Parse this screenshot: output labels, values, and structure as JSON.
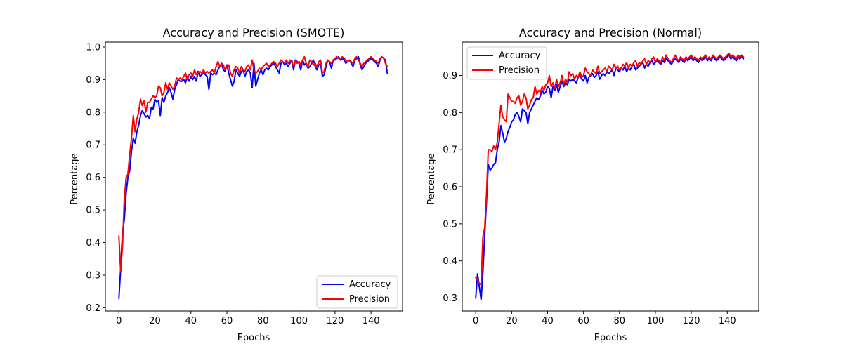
{
  "chart_data": [
    {
      "type": "line",
      "title": "Accuracy and Precision (SMOTE)",
      "xlabel": "Epochs",
      "ylabel": "Percentage",
      "xlim": [
        -7.5,
        157.5
      ],
      "ylim": [
        0.19,
        1.015
      ],
      "xticks": [
        0,
        20,
        40,
        60,
        80,
        100,
        120,
        140
      ],
      "yticks": [
        0.2,
        0.3,
        0.4,
        0.5,
        0.6,
        0.7,
        0.8,
        0.9,
        1.0
      ],
      "ytick_labels": [
        "0.2",
        "0.3",
        "0.4",
        "0.5",
        "0.6",
        "0.7",
        "0.8",
        "0.9",
        "1.0"
      ],
      "legend_position": "lower right",
      "grid": false,
      "series": [
        {
          "name": "Accuracy",
          "color": "#0000ff",
          "values": [
            0.228,
            0.32,
            0.43,
            0.47,
            0.55,
            0.6,
            0.62,
            0.68,
            0.72,
            0.705,
            0.74,
            0.76,
            0.79,
            0.805,
            0.795,
            0.785,
            0.79,
            0.78,
            0.815,
            0.81,
            0.84,
            0.83,
            0.835,
            0.79,
            0.845,
            0.83,
            0.85,
            0.86,
            0.875,
            0.86,
            0.84,
            0.87,
            0.885,
            0.9,
            0.895,
            0.895,
            0.9,
            0.89,
            0.91,
            0.895,
            0.91,
            0.9,
            0.91,
            0.895,
            0.925,
            0.91,
            0.915,
            0.92,
            0.915,
            0.91,
            0.87,
            0.92,
            0.915,
            0.92,
            0.915,
            0.93,
            0.94,
            0.95,
            0.93,
            0.925,
            0.945,
            0.92,
            0.9,
            0.88,
            0.895,
            0.93,
            0.92,
            0.91,
            0.925,
            0.93,
            0.91,
            0.925,
            0.93,
            0.92,
            0.875,
            0.95,
            0.88,
            0.9,
            0.92,
            0.93,
            0.915,
            0.93,
            0.935,
            0.93,
            0.94,
            0.945,
            0.95,
            0.94,
            0.93,
            0.92,
            0.95,
            0.955,
            0.945,
            0.95,
            0.94,
            0.95,
            0.96,
            0.93,
            0.96,
            0.955,
            0.95,
            0.93,
            0.96,
            0.945,
            0.95,
            0.935,
            0.94,
            0.95,
            0.96,
            0.94,
            0.93,
            0.945,
            0.95,
            0.91,
            0.915,
            0.94,
            0.96,
            0.955,
            0.935,
            0.96,
            0.96,
            0.965,
            0.97,
            0.96,
            0.965,
            0.96,
            0.95,
            0.955,
            0.96,
            0.95,
            0.94,
            0.96,
            0.965,
            0.97,
            0.945,
            0.93,
            0.94,
            0.95,
            0.955,
            0.96,
            0.965,
            0.96,
            0.955,
            0.95,
            0.94,
            0.96,
            0.97,
            0.965,
            0.96,
            0.92
          ]
        },
        {
          "name": "Precision",
          "color": "#ff0000",
          "values": [
            0.42,
            0.31,
            0.39,
            0.53,
            0.6,
            0.61,
            0.67,
            0.72,
            0.79,
            0.74,
            0.78,
            0.8,
            0.84,
            0.82,
            0.835,
            0.8,
            0.83,
            0.83,
            0.84,
            0.85,
            0.845,
            0.85,
            0.88,
            0.875,
            0.85,
            0.86,
            0.89,
            0.87,
            0.89,
            0.88,
            0.87,
            0.88,
            0.905,
            0.9,
            0.905,
            0.9,
            0.91,
            0.92,
            0.9,
            0.915,
            0.92,
            0.91,
            0.93,
            0.915,
            0.92,
            0.925,
            0.92,
            0.93,
            0.92,
            0.925,
            0.92,
            0.925,
            0.93,
            0.92,
            0.94,
            0.955,
            0.94,
            0.95,
            0.945,
            0.93,
            0.94,
            0.945,
            0.92,
            0.91,
            0.93,
            0.94,
            0.935,
            0.92,
            0.94,
            0.93,
            0.925,
            0.94,
            0.945,
            0.93,
            0.96,
            0.93,
            0.92,
            0.925,
            0.935,
            0.93,
            0.94,
            0.945,
            0.95,
            0.94,
            0.945,
            0.95,
            0.955,
            0.95,
            0.94,
            0.95,
            0.96,
            0.955,
            0.95,
            0.96,
            0.95,
            0.96,
            0.955,
            0.94,
            0.96,
            0.95,
            0.955,
            0.945,
            0.96,
            0.97,
            0.95,
            0.94,
            0.96,
            0.955,
            0.945,
            0.95,
            0.94,
            0.955,
            0.96,
            0.92,
            0.925,
            0.95,
            0.96,
            0.955,
            0.95,
            0.96,
            0.965,
            0.97,
            0.965,
            0.96,
            0.97,
            0.965,
            0.96,
            0.955,
            0.96,
            0.955,
            0.95,
            0.965,
            0.97,
            0.96,
            0.95,
            0.94,
            0.95,
            0.955,
            0.96,
            0.965,
            0.97,
            0.965,
            0.96,
            0.955,
            0.95,
            0.965,
            0.97,
            0.965,
            0.95,
            0.94
          ]
        }
      ]
    },
    {
      "type": "line",
      "title": "Accuracy and Precision (Normal)",
      "xlabel": "Epochs",
      "ylabel": "Percentage",
      "xlim": [
        -7.5,
        157.5
      ],
      "ylim": [
        0.265,
        0.99
      ],
      "xticks": [
        0,
        20,
        40,
        60,
        80,
        100,
        120,
        140
      ],
      "yticks": [
        0.3,
        0.4,
        0.5,
        0.6,
        0.7,
        0.8,
        0.9
      ],
      "ytick_labels": [
        "0.3",
        "0.4",
        "0.5",
        "0.6",
        "0.7",
        "0.8",
        "0.9"
      ],
      "legend_position": "upper left",
      "grid": false,
      "series": [
        {
          "name": "Accuracy",
          "color": "#0000ff",
          "values": [
            0.3,
            0.365,
            0.33,
            0.295,
            0.37,
            0.47,
            0.56,
            0.66,
            0.645,
            0.65,
            0.66,
            0.665,
            0.7,
            0.72,
            0.765,
            0.745,
            0.72,
            0.73,
            0.75,
            0.76,
            0.775,
            0.78,
            0.795,
            0.8,
            0.79,
            0.775,
            0.81,
            0.805,
            0.8,
            0.77,
            0.8,
            0.81,
            0.82,
            0.83,
            0.84,
            0.835,
            0.845,
            0.86,
            0.85,
            0.855,
            0.87,
            0.865,
            0.84,
            0.87,
            0.86,
            0.875,
            0.855,
            0.87,
            0.885,
            0.87,
            0.88,
            0.875,
            0.89,
            0.885,
            0.89,
            0.885,
            0.88,
            0.895,
            0.9,
            0.89,
            0.885,
            0.9,
            0.88,
            0.895,
            0.9,
            0.905,
            0.895,
            0.9,
            0.91,
            0.89,
            0.9,
            0.905,
            0.9,
            0.91,
            0.905,
            0.91,
            0.915,
            0.9,
            0.92,
            0.915,
            0.91,
            0.92,
            0.915,
            0.925,
            0.91,
            0.92,
            0.915,
            0.925,
            0.93,
            0.915,
            0.92,
            0.925,
            0.93,
            0.935,
            0.92,
            0.93,
            0.925,
            0.935,
            0.94,
            0.93,
            0.935,
            0.94,
            0.935,
            0.93,
            0.94,
            0.935,
            0.945,
            0.94,
            0.935,
            0.93,
            0.94,
            0.945,
            0.94,
            0.935,
            0.945,
            0.94,
            0.935,
            0.945,
            0.94,
            0.945,
            0.95,
            0.94,
            0.945,
            0.94,
            0.935,
            0.945,
            0.94,
            0.945,
            0.95,
            0.94,
            0.945,
            0.94,
            0.95,
            0.945,
            0.94,
            0.945,
            0.95,
            0.945,
            0.94,
            0.945,
            0.95,
            0.955,
            0.945,
            0.95,
            0.945,
            0.94,
            0.95,
            0.945,
            0.95,
            0.945
          ]
        },
        {
          "name": "Precision",
          "color": "#ff0000",
          "values": [
            0.355,
            0.35,
            0.34,
            0.335,
            0.465,
            0.49,
            0.58,
            0.7,
            0.7,
            0.695,
            0.71,
            0.7,
            0.72,
            0.77,
            0.82,
            0.79,
            0.78,
            0.775,
            0.85,
            0.84,
            0.83,
            0.83,
            0.825,
            0.84,
            0.845,
            0.82,
            0.83,
            0.85,
            0.84,
            0.81,
            0.82,
            0.835,
            0.84,
            0.87,
            0.85,
            0.86,
            0.855,
            0.87,
            0.86,
            0.875,
            0.88,
            0.9,
            0.87,
            0.88,
            0.865,
            0.89,
            0.87,
            0.88,
            0.9,
            0.875,
            0.89,
            0.88,
            0.91,
            0.9,
            0.905,
            0.89,
            0.9,
            0.895,
            0.91,
            0.895,
            0.9,
            0.92,
            0.91,
            0.905,
            0.9,
            0.915,
            0.91,
            0.905,
            0.925,
            0.905,
            0.91,
            0.915,
            0.92,
            0.91,
            0.925,
            0.92,
            0.915,
            0.93,
            0.92,
            0.925,
            0.915,
            0.92,
            0.93,
            0.925,
            0.935,
            0.92,
            0.93,
            0.925,
            0.935,
            0.94,
            0.925,
            0.935,
            0.93,
            0.94,
            0.945,
            0.93,
            0.94,
            0.935,
            0.945,
            0.95,
            0.935,
            0.945,
            0.94,
            0.935,
            0.95,
            0.94,
            0.955,
            0.945,
            0.94,
            0.935,
            0.945,
            0.955,
            0.945,
            0.94,
            0.95,
            0.945,
            0.94,
            0.95,
            0.945,
            0.95,
            0.955,
            0.945,
            0.95,
            0.945,
            0.94,
            0.95,
            0.945,
            0.95,
            0.955,
            0.945,
            0.95,
            0.945,
            0.955,
            0.95,
            0.945,
            0.95,
            0.955,
            0.95,
            0.945,
            0.95,
            0.955,
            0.96,
            0.95,
            0.955,
            0.95,
            0.945,
            0.955,
            0.95,
            0.955,
            0.95
          ]
        }
      ]
    }
  ]
}
